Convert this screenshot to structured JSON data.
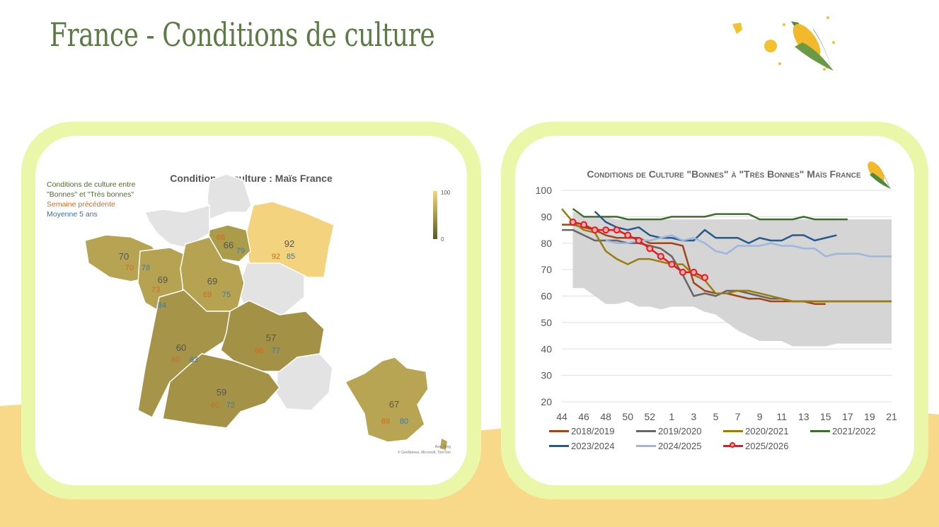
{
  "page": {
    "title": "France - Conditions de culture"
  },
  "map_panel": {
    "title": "Condition de culture : Maïs France",
    "legend": {
      "line1": "Conditions de culture entre",
      "line2": "\"Bonnes\" et \"Très bonnes\"",
      "previous_week": "Semaine précédente",
      "five_year_avg": "Moyenne 5 ans"
    },
    "scale": {
      "max": "100",
      "min": "0"
    },
    "attribution1": "Avec Bing",
    "attribution2": "© GeoNames, Microsoft, TomTom",
    "colors": {
      "current": "#555555",
      "previous": "#d2691e",
      "average": "#3a7ab0"
    },
    "regions": [
      {
        "id": "bretagne",
        "current": "70",
        "previous": "70",
        "average": "78"
      },
      {
        "id": "pays-de-la-loire",
        "current": "69",
        "previous": "73",
        "average": "84"
      },
      {
        "id": "centre",
        "current": "69",
        "previous": "69",
        "average": "75"
      },
      {
        "id": "ile-de-france",
        "current": "66",
        "previous": "66",
        "average": "79"
      },
      {
        "id": "grand-est",
        "current": "92",
        "previous": "92",
        "average": "85"
      },
      {
        "id": "nouvelle-aquitaine",
        "current": "60",
        "previous": "60",
        "average": "83"
      },
      {
        "id": "auvergne-rhone-alpes",
        "current": "57",
        "previous": "66",
        "average": "77"
      },
      {
        "id": "occitanie",
        "current": "59",
        "previous": "60",
        "average": "72"
      },
      {
        "id": "france",
        "current": "67",
        "previous": "69",
        "average": "80"
      }
    ]
  },
  "chart_data": {
    "type": "line",
    "title": "Conditions de Culture \"Bonnes\" à \"Très Bonnes\" Maïs France",
    "x": [
      "44",
      "45",
      "46",
      "47",
      "48",
      "49",
      "50",
      "51",
      "52",
      "53",
      "1",
      "2",
      "3",
      "4",
      "5",
      "6",
      "7",
      "8",
      "9",
      "10",
      "11",
      "12",
      "13",
      "14",
      "15",
      "16",
      "17",
      "18",
      "19",
      "20",
      "21"
    ],
    "xtick_labels": [
      "44",
      "46",
      "48",
      "50",
      "52",
      "1",
      "3",
      "5",
      "7",
      "9",
      "11",
      "13",
      "15",
      "17",
      "19",
      "21"
    ],
    "ylim": [
      20,
      100
    ],
    "yticks": [
      "20",
      "30",
      "40",
      "50",
      "60",
      "70",
      "80",
      "90",
      "100"
    ],
    "grid": true,
    "legend_position": "bottom",
    "range_band": {
      "color": "#d3d3d3",
      "upper": [
        null,
        92,
        90,
        90,
        90,
        89,
        89,
        89,
        89,
        89,
        89,
        89,
        89,
        89,
        89,
        89,
        89,
        89,
        89,
        89,
        89,
        89,
        89,
        89,
        89,
        89,
        89,
        89,
        89,
        89,
        89
      ],
      "lower": [
        null,
        63,
        63,
        60,
        57,
        57,
        58,
        56,
        56,
        55,
        56,
        56,
        56,
        54,
        53,
        50,
        47,
        45,
        43,
        43,
        43,
        41,
        41,
        41,
        41,
        42,
        42,
        42,
        42,
        42,
        42
      ]
    },
    "series": [
      {
        "name": "2018/2019",
        "color": "#a0461a",
        "width": 2.5,
        "values": [
          87,
          87,
          86,
          85,
          83,
          82,
          82,
          82,
          80,
          80,
          80,
          79,
          65,
          62,
          61,
          61,
          60,
          59,
          59,
          58,
          58,
          58,
          58,
          57,
          57,
          null,
          null,
          null,
          null,
          null,
          null
        ]
      },
      {
        "name": "2019/2020",
        "color": "#666666",
        "width": 2.5,
        "values": [
          85,
          85,
          83,
          81,
          81,
          81,
          80,
          80,
          79,
          78,
          75,
          68,
          60,
          61,
          60,
          62,
          62,
          61,
          60,
          59,
          59,
          58,
          58,
          58,
          58,
          58,
          58,
          58,
          58,
          58,
          58
        ]
      },
      {
        "name": "2020/2021",
        "color": "#9a7d0a",
        "width": 2.5,
        "values": [
          93,
          88,
          85,
          84,
          77,
          74,
          72,
          74,
          74,
          73,
          72,
          72,
          68,
          66,
          61,
          61,
          62,
          62,
          61,
          60,
          59,
          58,
          58,
          58,
          58,
          58,
          58,
          58,
          58,
          58,
          58
        ]
      },
      {
        "name": "2021/2022",
        "color": "#3f6e2a",
        "width": 2.5,
        "values": [
          null,
          93,
          90,
          90,
          90,
          90,
          89,
          89,
          89,
          89,
          90,
          90,
          90,
          90,
          91,
          91,
          91,
          91,
          89,
          89,
          89,
          89,
          90,
          89,
          89,
          89,
          89,
          null,
          null,
          null,
          null
        ]
      },
      {
        "name": "2023/2024",
        "color": "#245b8f",
        "width": 2.5,
        "values": [
          null,
          null,
          null,
          92,
          88,
          86,
          85,
          86,
          83,
          82,
          82,
          81,
          81,
          85,
          82,
          82,
          82,
          80,
          82,
          81,
          81,
          83,
          83,
          81,
          82,
          83,
          null,
          null,
          null,
          null,
          null
        ]
      },
      {
        "name": "2024/2025",
        "color": "#9fb6dc",
        "width": 2.5,
        "values": [
          null,
          null,
          null,
          null,
          81,
          80,
          80,
          81,
          81,
          82,
          83,
          81,
          82,
          80,
          77,
          76,
          79,
          79,
          79,
          80,
          79,
          79,
          78,
          78,
          75,
          76,
          76,
          76,
          75,
          75,
          75
        ]
      },
      {
        "name": "2025/2026",
        "color": "#e41a1c",
        "width": 2.5,
        "marker": "circle",
        "values": [
          null,
          88,
          87,
          85,
          85,
          85,
          83,
          81,
          78,
          75,
          72,
          69,
          69,
          67,
          null,
          null,
          null,
          null,
          null,
          null,
          null,
          null,
          null,
          null,
          null,
          null,
          null,
          null,
          null,
          null,
          null
        ]
      }
    ]
  }
}
